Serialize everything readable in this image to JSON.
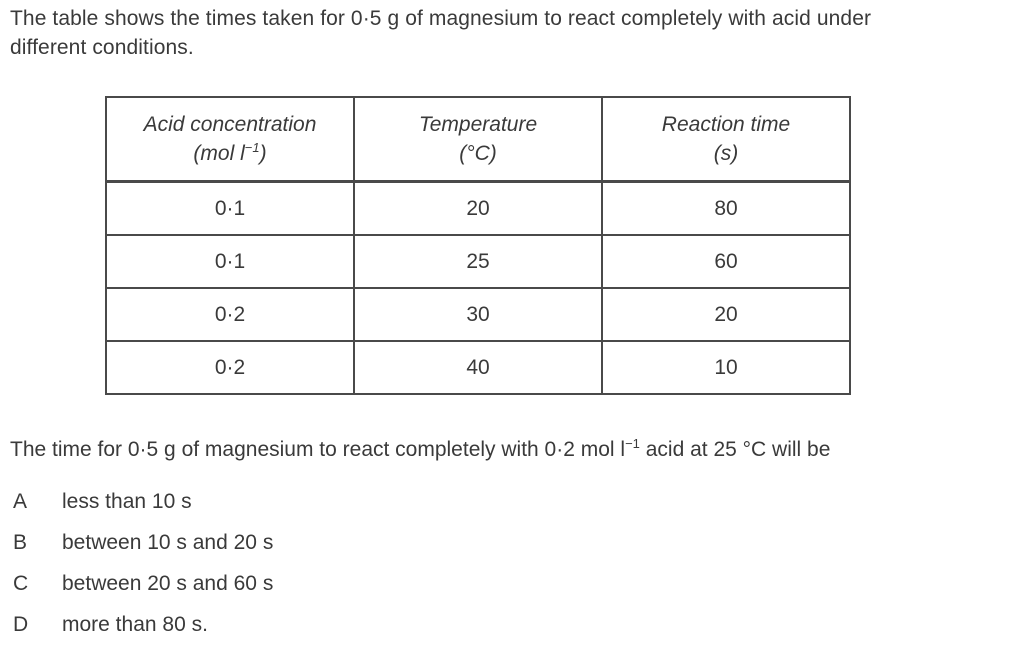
{
  "page": {
    "background_color": "#ffffff",
    "text_color": "#3a3a3a",
    "table_border_color": "#4a4a4a"
  },
  "intro": {
    "lines": [
      "The table shows the times taken for 0·5 g of magnesium to react completely with acid under",
      "different conditions."
    ]
  },
  "table": {
    "headers": [
      {
        "line1": "Acid concentration",
        "unit_pre": "(mol l",
        "unit_sup": "−1",
        "unit_post": ")"
      },
      {
        "line1": "Temperature",
        "unit": "(°C)"
      },
      {
        "line1": "Reaction time",
        "unit": "(s)"
      }
    ],
    "rows": [
      [
        "0·1",
        "20",
        "80"
      ],
      [
        "0·1",
        "25",
        "60"
      ],
      [
        "0·2",
        "30",
        "20"
      ],
      [
        "0·2",
        "40",
        "10"
      ]
    ]
  },
  "question": {
    "pre": "The time for 0·5 g of magnesium to react completely with 0·2 mol l",
    "sup": "−1",
    "post": " acid at 25 °C will be"
  },
  "options": [
    {
      "letter": "A",
      "text": "less than 10 s"
    },
    {
      "letter": "B",
      "text": "between 10 s and 20 s"
    },
    {
      "letter": "C",
      "text": "between 20 s and 60 s"
    },
    {
      "letter": "D",
      "text": "more than 80 s."
    }
  ]
}
